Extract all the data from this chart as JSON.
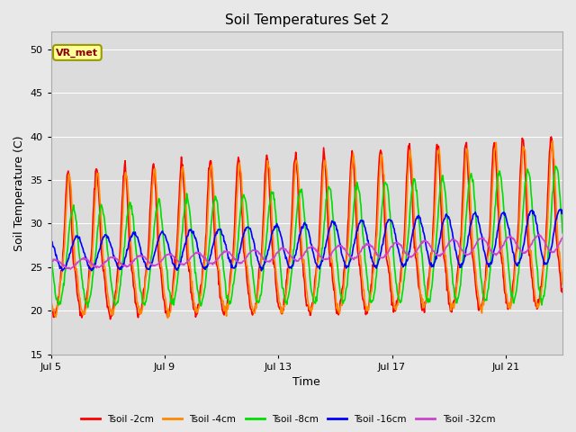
{
  "title": "Soil Temperatures Set 2",
  "xlabel": "Time",
  "ylabel": "Soil Temperature (C)",
  "ylim": [
    15,
    52
  ],
  "yticks": [
    15,
    20,
    25,
    30,
    35,
    40,
    45,
    50
  ],
  "background_color": "#e8e8e8",
  "plot_bg_color": "#dcdcdc",
  "annotation_text": "VR_met",
  "annotation_box_color": "#ffff99",
  "annotation_box_edge": "#999900",
  "series": [
    {
      "label": "Tsoil -2cm",
      "color": "#ff0000"
    },
    {
      "label": "Tsoil -4cm",
      "color": "#ff8800"
    },
    {
      "label": "Tsoil -8cm",
      "color": "#00dd00"
    },
    {
      "label": "Tsoil -16cm",
      "color": "#0000ff"
    },
    {
      "label": "Tsoil -32cm",
      "color": "#cc44cc"
    }
  ],
  "x_tick_labels": [
    "Jul 5",
    "Jul 9",
    "Jul 13",
    "Jul 17",
    "Jul 21"
  ],
  "x_tick_positions": [
    0,
    4,
    8,
    12,
    16
  ],
  "num_days": 18,
  "pts_per_day": 48
}
